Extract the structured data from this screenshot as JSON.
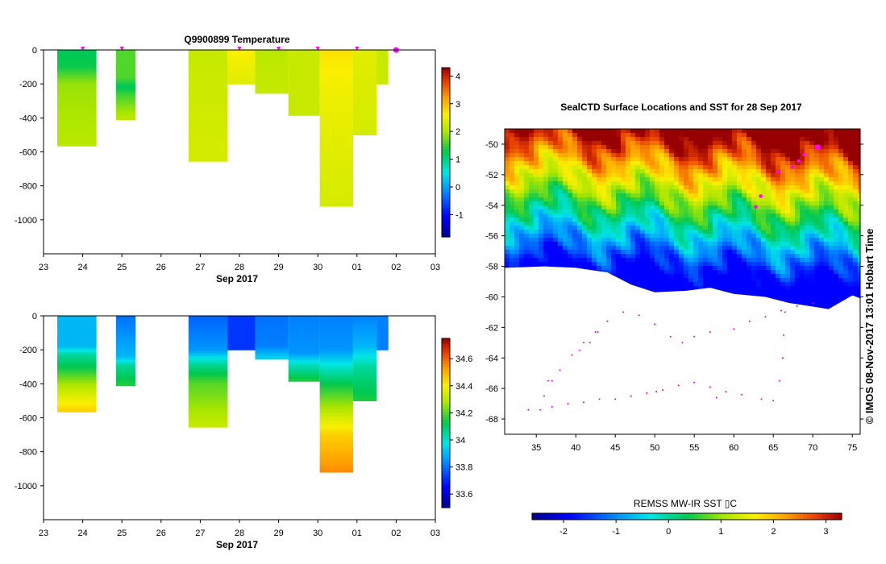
{
  "chart_data": [
    {
      "type": "heatmap",
      "id": "temp",
      "title": "Q9900899  Temperature",
      "xlabel": "Sep 2017",
      "x_ticks": [
        "23",
        "24",
        "25",
        "26",
        "27",
        "28",
        "29",
        "30",
        "01",
        "02",
        "03"
      ],
      "ylim": [
        -1200,
        0
      ],
      "y_ticks": [
        0,
        -200,
        -400,
        -600,
        -800,
        -1000
      ],
      "colorbar": {
        "min": -1.8,
        "max": 4.3,
        "ticks": [
          4,
          3,
          2,
          1,
          0,
          -1
        ],
        "colormap": "jet"
      },
      "profile_markers": [
        24,
        25,
        28,
        29,
        30,
        31,
        32
      ],
      "profiles": [
        {
          "x0": 23.35,
          "x1": 24.35,
          "depth": 565,
          "stops": [
            [
              0,
              1.2
            ],
            [
              100,
              1.3
            ],
            [
              200,
              1.9
            ],
            [
              560,
              2.1
            ]
          ]
        },
        {
          "x0": 24.85,
          "x1": 25.35,
          "depth": 410,
          "stops": [
            [
              0,
              1.6
            ],
            [
              160,
              1.6
            ],
            [
              220,
              1.2
            ],
            [
              260,
              1.5
            ],
            [
              400,
              2.1
            ]
          ]
        },
        {
          "x0": 26.7,
          "x1": 27.7,
          "depth": 655,
          "stops": [
            [
              0,
              2.2
            ],
            [
              650,
              2.3
            ]
          ]
        },
        {
          "x0": 27.7,
          "x1": 28.4,
          "depth": 200,
          "stops": [
            [
              0,
              2.6
            ],
            [
              190,
              2.4
            ]
          ]
        },
        {
          "x0": 28.4,
          "x1": 29.25,
          "depth": 255,
          "stops": [
            [
              0,
              2.1
            ],
            [
              250,
              2.2
            ]
          ]
        },
        {
          "x0": 29.25,
          "x1": 30.05,
          "depth": 385,
          "stops": [
            [
              0,
              2.2
            ],
            [
              380,
              2.2
            ]
          ]
        },
        {
          "x0": 30.05,
          "x1": 30.9,
          "depth": 920,
          "stops": [
            [
              0,
              2.7
            ],
            [
              250,
              2.5
            ],
            [
              600,
              2.4
            ],
            [
              915,
              2.3
            ]
          ]
        },
        {
          "x0": 30.9,
          "x1": 31.5,
          "depth": 500,
          "stops": [
            [
              0,
              2.4
            ],
            [
              500,
              2.3
            ]
          ]
        },
        {
          "x0": 31.5,
          "x1": 31.8,
          "depth": 200,
          "stops": [
            [
              0,
              2.2
            ],
            [
              200,
              2.2
            ]
          ]
        }
      ]
    },
    {
      "type": "heatmap",
      "id": "sal",
      "title": "",
      "xlabel": "Sep 2017",
      "x_ticks": [
        "23",
        "24",
        "25",
        "26",
        "27",
        "28",
        "29",
        "30",
        "01",
        "02",
        "03"
      ],
      "ylim": [
        -1200,
        0
      ],
      "y_ticks": [
        0,
        -200,
        -400,
        -600,
        -800,
        -1000
      ],
      "colorbar": {
        "min": 33.5,
        "max": 34.75,
        "ticks": [
          34.6,
          34.4,
          34.2,
          34,
          33.8,
          33.6
        ],
        "colormap": "jet"
      },
      "profiles": [
        {
          "x0": 23.35,
          "x1": 24.35,
          "depth": 565,
          "stops": [
            [
              0,
              33.9
            ],
            [
              180,
              33.9
            ],
            [
              230,
              34.05
            ],
            [
              320,
              34.15
            ],
            [
              420,
              34.3
            ],
            [
              560,
              34.45
            ]
          ]
        },
        {
          "x0": 24.85,
          "x1": 25.35,
          "depth": 410,
          "stops": [
            [
              0,
              33.8
            ],
            [
              240,
              33.9
            ],
            [
              290,
              34.05
            ],
            [
              400,
              34.15
            ]
          ]
        },
        {
          "x0": 26.7,
          "x1": 27.7,
          "depth": 655,
          "stops": [
            [
              0,
              33.78
            ],
            [
              200,
              33.85
            ],
            [
              280,
              34.05
            ],
            [
              400,
              34.2
            ],
            [
              650,
              34.32
            ]
          ]
        },
        {
          "x0": 27.7,
          "x1": 28.4,
          "depth": 200,
          "stops": [
            [
              0,
              33.72
            ],
            [
              195,
              33.72
            ]
          ]
        },
        {
          "x0": 28.4,
          "x1": 29.25,
          "depth": 255,
          "stops": [
            [
              0,
              33.8
            ],
            [
              180,
              33.82
            ],
            [
              250,
              33.95
            ]
          ]
        },
        {
          "x0": 29.25,
          "x1": 30.05,
          "depth": 385,
          "stops": [
            [
              0,
              33.82
            ],
            [
              220,
              33.85
            ],
            [
              280,
              34.0
            ],
            [
              380,
              34.15
            ]
          ]
        },
        {
          "x0": 30.05,
          "x1": 30.9,
          "depth": 920,
          "stops": [
            [
              0,
              33.82
            ],
            [
              200,
              33.85
            ],
            [
              300,
              34.0
            ],
            [
              420,
              34.15
            ],
            [
              560,
              34.3
            ],
            [
              700,
              34.45
            ],
            [
              915,
              34.55
            ]
          ]
        },
        {
          "x0": 30.9,
          "x1": 31.5,
          "depth": 500,
          "stops": [
            [
              0,
              33.82
            ],
            [
              180,
              33.9
            ],
            [
              300,
              34.05
            ],
            [
              500,
              34.15
            ]
          ]
        },
        {
          "x0": 31.5,
          "x1": 31.8,
          "depth": 200,
          "stops": [
            [
              0,
              33.82
            ],
            [
              200,
              33.82
            ]
          ]
        }
      ]
    },
    {
      "type": "heatmap",
      "id": "map",
      "title": "SealCTD Surface Locations and SST for 28 Sep 2017",
      "x_ticks": [
        35,
        40,
        45,
        50,
        55,
        60,
        65,
        70,
        75
      ],
      "y_ticks": [
        -50,
        -52,
        -54,
        -56,
        -58,
        -60,
        -62,
        -64,
        -66,
        -68
      ],
      "xlim": [
        31,
        76
      ],
      "ylim": [
        -69,
        -49
      ],
      "colorbar_label": "REMSS MW-IR SST ▯C",
      "colorbar": {
        "min": -2.6,
        "max": 3.3,
        "ticks": [
          -2,
          -1,
          0,
          1,
          2,
          3
        ],
        "colormap": "jet"
      },
      "sst_field": {
        "north_lat": -49,
        "north_temp": 3.5,
        "south_temp": -1.9,
        "span_lat": 9
      },
      "ice_edge": [
        [
          31,
          -58.1
        ],
        [
          36,
          -58.0
        ],
        [
          40,
          -58.1
        ],
        [
          44,
          -58.4
        ],
        [
          47,
          -59.2
        ],
        [
          50,
          -59.7
        ],
        [
          54,
          -59.6
        ],
        [
          57,
          -59.4
        ],
        [
          60,
          -59.8
        ],
        [
          64,
          -60.0
        ],
        [
          67,
          -60.4
        ],
        [
          72,
          -60.8
        ],
        [
          75,
          -59.9
        ],
        [
          76,
          -60.1
        ]
      ],
      "surface_points": [
        [
          62.8,
          -54.1
        ],
        [
          63.4,
          -53.4
        ],
        [
          65.6,
          -51.8
        ],
        [
          67.4,
          -51.5
        ],
        [
          68.2,
          -51.1
        ],
        [
          68.9,
          -50.7
        ],
        [
          70.6,
          -50.2
        ]
      ],
      "track_points": [
        [
          34,
          -67.4
        ],
        [
          36,
          -66.5
        ],
        [
          37,
          -65.5
        ],
        [
          38,
          -64.8
        ],
        [
          39.5,
          -63.8
        ],
        [
          41,
          -63.0
        ],
        [
          42.5,
          -62.3
        ],
        [
          44,
          -61.6
        ],
        [
          46,
          -61.0
        ],
        [
          48,
          -61.2
        ],
        [
          50,
          -61.8
        ],
        [
          52,
          -62.6
        ],
        [
          53.5,
          -63.0
        ],
        [
          55,
          -62.6
        ],
        [
          57,
          -62.3
        ],
        [
          60,
          -62.1
        ],
        [
          62,
          -61.6
        ],
        [
          64,
          -61.3
        ],
        [
          66,
          -60.9
        ],
        [
          68,
          -60.6
        ],
        [
          70,
          -60.4
        ],
        [
          66.5,
          -61.0
        ],
        [
          66.3,
          -62.5
        ],
        [
          66.2,
          -64.0
        ],
        [
          65.8,
          -65.5
        ],
        [
          65.0,
          -66.8
        ],
        [
          63.5,
          -66.7
        ],
        [
          61,
          -66.4
        ],
        [
          59,
          -66.2
        ],
        [
          57,
          -65.9
        ],
        [
          55,
          -65.6
        ],
        [
          53,
          -65.8
        ],
        [
          51,
          -66.1
        ],
        [
          49,
          -66.3
        ],
        [
          47,
          -66.5
        ],
        [
          45,
          -66.7
        ],
        [
          43,
          -66.7
        ],
        [
          41,
          -66.9
        ],
        [
          39,
          -67.0
        ],
        [
          37,
          -67.2
        ],
        [
          35.5,
          -67.4
        ],
        [
          36.5,
          -65.5
        ],
        [
          40.5,
          -63.5
        ],
        [
          41.8,
          -63.0
        ],
        [
          42.8,
          -62.3
        ],
        [
          50.2,
          -66.2
        ],
        [
          57.8,
          -66.6
        ]
      ],
      "note": "©  IMOS 08-Nov-2017 13:01 Hobart Time"
    }
  ]
}
